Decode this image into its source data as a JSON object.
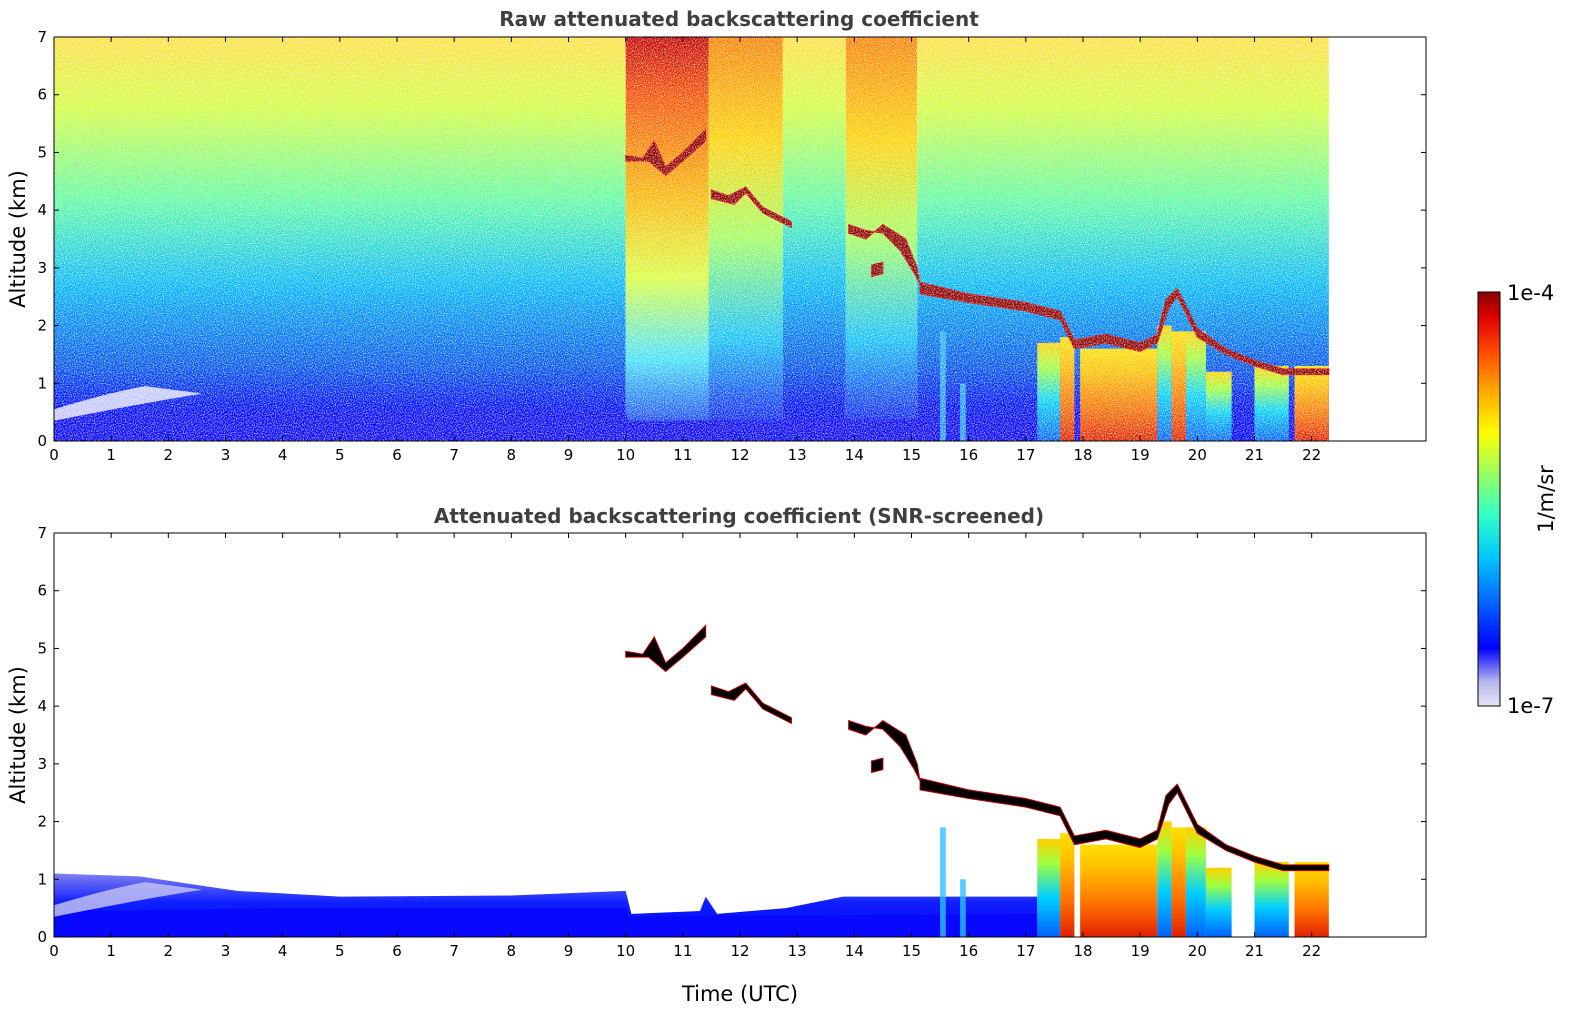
{
  "chart_data": [
    {
      "type": "heatmap",
      "title": "Raw attenuated backscattering coefficient",
      "xlabel": "",
      "ylabel": "Altitude (km)",
      "xlim": [
        0,
        24
      ],
      "ylim": [
        0,
        7
      ],
      "xticks": [
        "0",
        "1",
        "2",
        "3",
        "4",
        "5",
        "6",
        "7",
        "8",
        "9",
        "10",
        "11",
        "12",
        "13",
        "14",
        "15",
        "16",
        "17",
        "18",
        "19",
        "20",
        "21",
        "22"
      ],
      "yticks": [
        "0",
        "1",
        "2",
        "3",
        "4",
        "5",
        "6",
        "7"
      ],
      "data_extent_time": [
        0,
        22.3
      ],
      "features": [
        {
          "type": "boundary_layer",
          "time": [
            0,
            22.3
          ],
          "top_km": 0.5
        },
        {
          "type": "cloud",
          "time": [
            10.0,
            11.4
          ],
          "alt_km": [
            4.8,
            5.4
          ]
        },
        {
          "type": "cloud",
          "time": [
            11.5,
            12.9
          ],
          "alt_km": [
            3.7,
            4.5
          ]
        },
        {
          "type": "cloud",
          "time": [
            13.9,
            15.2
          ],
          "alt_km": [
            2.8,
            4.0
          ]
        },
        {
          "type": "cloud_layer",
          "time": [
            15.2,
            22.3
          ],
          "alt_km_start": 2.5,
          "alt_km_end": 1.1
        },
        {
          "type": "precipitation",
          "time": [
            17.2,
            22.3
          ],
          "alt_km": [
            0,
            2.0
          ]
        }
      ]
    },
    {
      "type": "heatmap",
      "title": "Attenuated backscattering coefficient (SNR-screened)",
      "xlabel": "Time (UTC)",
      "ylabel": "Altitude (km)",
      "xlim": [
        0,
        24
      ],
      "ylim": [
        0,
        7
      ],
      "xticks": [
        "0",
        "1",
        "2",
        "3",
        "4",
        "5",
        "6",
        "7",
        "8",
        "9",
        "10",
        "11",
        "12",
        "13",
        "14",
        "15",
        "16",
        "17",
        "18",
        "19",
        "20",
        "21",
        "22"
      ],
      "yticks": [
        "0",
        "1",
        "2",
        "3",
        "4",
        "5",
        "6",
        "7"
      ],
      "data_extent_time": [
        0,
        22.3
      ],
      "screened": true
    }
  ],
  "colorbar": {
    "label": "1/m/sr",
    "max_label": "1e-4",
    "min_label": "1e-7",
    "scale": "log",
    "colormap": [
      "#e6e6f5",
      "#b4b4f0",
      "#0000ff",
      "#0064ff",
      "#00c8ff",
      "#32ffc8",
      "#96ff64",
      "#ffff00",
      "#ffaa00",
      "#ff4600",
      "#dc0000",
      "#8c0000"
    ]
  }
}
